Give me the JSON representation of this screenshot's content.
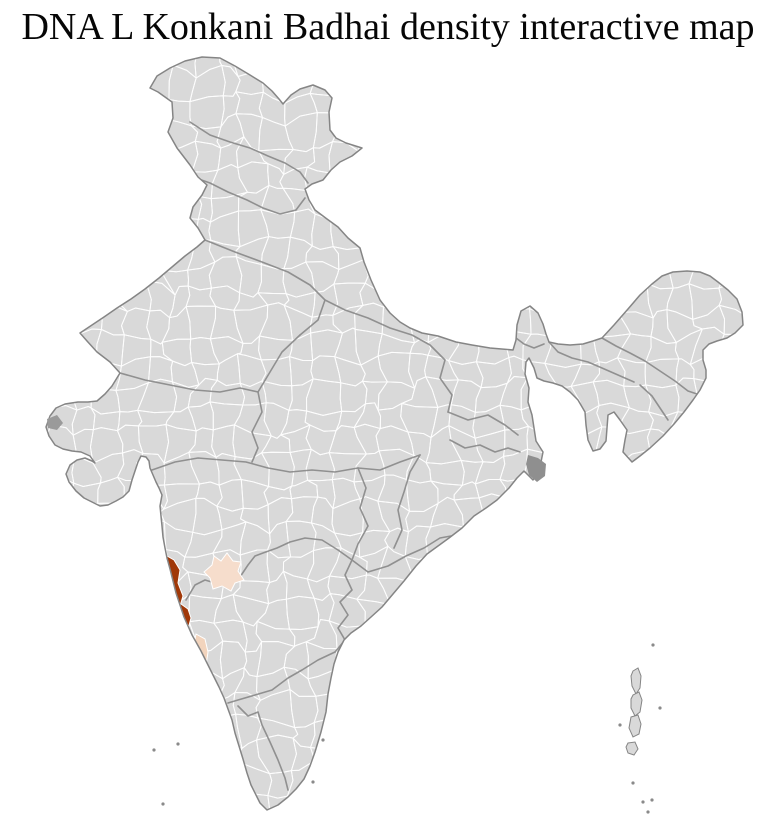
{
  "page": {
    "title": "DNA L Konkani Badhai density interactive map"
  },
  "map": {
    "description": "India district-level density choropleth",
    "colors": {
      "background": "#ffffff",
      "land": "#d9d9d9",
      "district_border": "#ffffff",
      "state_border": "#8a8a8a",
      "outline": "#858585",
      "marsh": "#8f8f8f",
      "island": "#d9d9d9"
    },
    "highlights": [
      {
        "id": "west-coast-district-north",
        "level": "high",
        "color": "#a03808"
      },
      {
        "id": "west-coast-district-south",
        "level": "high",
        "color": "#a03808"
      },
      {
        "id": "inland-district",
        "level": "low",
        "color": "#f6ddcc"
      },
      {
        "id": "coastal-district-far-south",
        "level": "low",
        "color": "#f2d4bd"
      }
    ]
  }
}
